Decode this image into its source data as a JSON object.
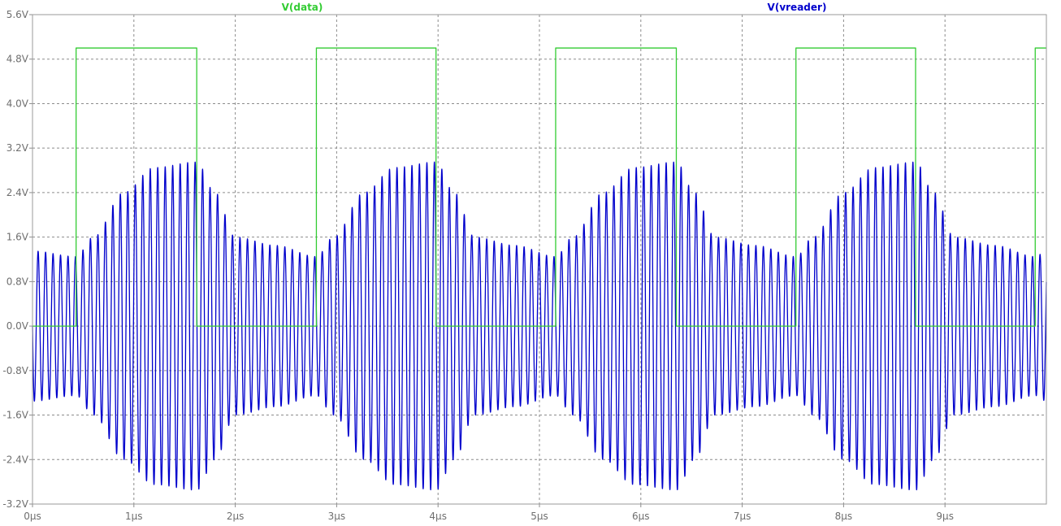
{
  "chart_data": {
    "type": "line",
    "x_unit": "µs",
    "xlim": [
      0,
      10
    ],
    "ylim": [
      -3.2,
      5.6
    ],
    "x_ticks": [
      "0µs",
      "1µs",
      "2µs",
      "3µs",
      "4µs",
      "5µs",
      "6µs",
      "7µs",
      "8µs",
      "9µs"
    ],
    "x_tick_values": [
      0,
      1,
      2,
      3,
      4,
      5,
      6,
      7,
      8,
      9
    ],
    "y_ticks": [
      "5.6V",
      "4.8V",
      "4.0V",
      "3.2V",
      "2.4V",
      "1.6V",
      "0.8V",
      "0.0V",
      "-0.8V",
      "-1.6V",
      "-2.4V",
      "-3.2V"
    ],
    "y_tick_values": [
      5.6,
      4.8,
      4.0,
      3.2,
      2.4,
      1.6,
      0.8,
      0.0,
      -0.8,
      -1.6,
      -2.4,
      -3.2
    ],
    "grid": true,
    "series": [
      {
        "name": "V(data)",
        "color": "#33cc33",
        "kind": "square-wave",
        "x": [
          0.0,
          0.43,
          0.43,
          1.62,
          1.62,
          2.8,
          2.8,
          3.98,
          3.98,
          5.16,
          5.16,
          6.35,
          6.35,
          7.53,
          7.53,
          8.71,
          8.71,
          9.89,
          9.89,
          10.0
        ],
        "y": [
          0.0,
          0.0,
          5.0,
          5.0,
          0.0,
          0.0,
          5.0,
          5.0,
          0.0,
          0.0,
          5.0,
          5.0,
          0.0,
          0.0,
          5.0,
          5.0,
          0.0,
          0.0,
          5.0,
          5.0
        ]
      },
      {
        "name": "V(vreader)",
        "color": "#0000cc",
        "kind": "modulated-carrier",
        "carrier_cycles_per_us": 13.56,
        "offset": 0.0,
        "envelope_t": [
          0.0,
          0.43,
          0.6,
          0.9,
          1.2,
          1.62,
          1.8,
          2.0,
          2.4,
          2.8,
          2.97,
          3.27,
          3.57,
          3.98,
          4.16,
          4.36,
          4.76,
          5.16,
          5.33,
          5.63,
          5.93,
          6.35,
          6.53,
          6.73,
          7.13,
          7.53,
          7.7,
          8.0,
          8.3,
          8.71,
          8.89,
          9.09,
          9.49,
          9.89,
          10.0
        ],
        "envelope_a": [
          1.35,
          1.25,
          1.6,
          2.4,
          2.85,
          2.95,
          2.4,
          1.6,
          1.45,
          1.25,
          1.6,
          2.4,
          2.85,
          2.95,
          2.4,
          1.6,
          1.45,
          1.25,
          1.6,
          2.4,
          2.85,
          2.95,
          2.4,
          1.6,
          1.45,
          1.25,
          1.6,
          2.4,
          2.85,
          2.95,
          2.4,
          1.6,
          1.45,
          1.25,
          1.35
        ]
      }
    ],
    "background": "#ffffff",
    "grid_color": "#8c8c8c",
    "tick_color": "#6e6e6e"
  }
}
